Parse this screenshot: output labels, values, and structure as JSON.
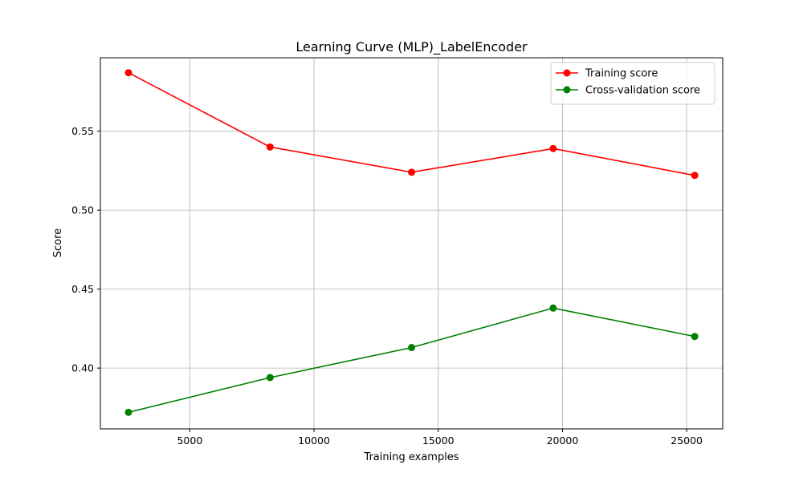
{
  "chart_data": {
    "type": "line",
    "title": "Learning Curve (MLP)_LabelEncoder",
    "xlabel": "Training examples",
    "ylabel": "Score",
    "xlim": [
      1400,
      26450
    ],
    "ylim": [
      0.3615,
      0.5965
    ],
    "x": [
      2532,
      8230,
      13928,
      19626,
      25324
    ],
    "xticks": [
      5000,
      10000,
      15000,
      20000,
      25000
    ],
    "xtick_labels": [
      "5000",
      "10000",
      "15000",
      "20000",
      "25000"
    ],
    "yticks": [
      0.4,
      0.45,
      0.5,
      0.55
    ],
    "ytick_labels": [
      "0.40",
      "0.45",
      "0.50",
      "0.55"
    ],
    "grid": true,
    "legend_position": "top-right",
    "series": [
      {
        "name": "Training score",
        "color": "#ff0000",
        "values": [
          0.587,
          0.54,
          0.524,
          0.539,
          0.522
        ]
      },
      {
        "name": "Cross-validation score",
        "color": "#008000",
        "values": [
          0.372,
          0.394,
          0.413,
          0.438,
          0.42
        ]
      }
    ]
  }
}
